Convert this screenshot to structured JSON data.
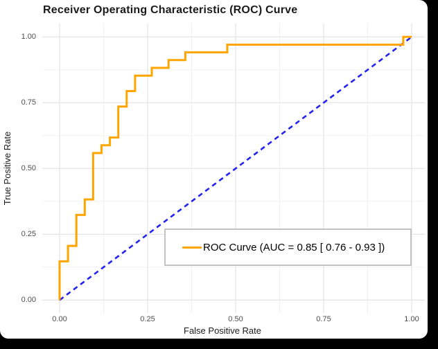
{
  "title": "Receiver Operating Characteristic (ROC) Curve",
  "colors": {
    "background_frame": "#000000",
    "sheet": "#ffffff",
    "roc_line": "#FFA500",
    "diagonal_line": "#2323EB",
    "grid_major": "#e6e6e6",
    "grid_minor": "#f1f1f1",
    "tick_text": "#4d4d4d",
    "axis_title_text": "#1a1a1a",
    "legend_border": "#c2c2c2"
  },
  "legend": {
    "label": "ROC Curve (AUC = 0.85 [ 0.76 - 0.93 ])"
  },
  "chart_data": {
    "type": "line",
    "subtype": "roc-step-curve",
    "title": "Receiver Operating Characteristic (ROC) Curve",
    "xlabel": "False Positive Rate",
    "ylabel": "True Positive Rate",
    "xlim": [
      0,
      1
    ],
    "ylim": [
      0,
      1
    ],
    "x_ticks": [
      0,
      0.25,
      0.5,
      0.75,
      1
    ],
    "y_ticks": [
      0,
      0.25,
      0.5,
      0.75,
      1
    ],
    "tick_format_labels": [
      "0.00",
      "0.25",
      "0.50",
      "0.75",
      "1.00"
    ],
    "minor_grid_values": [
      0.125,
      0.375,
      0.625,
      0.875
    ],
    "grid": "major and minor, light gray on white, no axis lines",
    "legend_position": "inside plot, lower right, boxed",
    "auc": 0.85,
    "auc_ci_low": 0.76,
    "auc_ci_high": 0.93,
    "series": [
      {
        "name": "ROC Curve (AUC = 0.85 [ 0.76 - 0.93 ])",
        "style": "solid step",
        "color": "#FFA500",
        "points": [
          [
            0,
            0
          ],
          [
            0,
            0.1471
          ],
          [
            0.0238,
            0.1471
          ],
          [
            0.0238,
            0.2059
          ],
          [
            0.0476,
            0.2059
          ],
          [
            0.0476,
            0.3235
          ],
          [
            0.0714,
            0.3235
          ],
          [
            0.0714,
            0.3824
          ],
          [
            0.0952,
            0.3824
          ],
          [
            0.0952,
            0.5588
          ],
          [
            0.119,
            0.5588
          ],
          [
            0.119,
            0.5882
          ],
          [
            0.1429,
            0.5882
          ],
          [
            0.1429,
            0.6176
          ],
          [
            0.1667,
            0.6176
          ],
          [
            0.1667,
            0.7353
          ],
          [
            0.1905,
            0.7353
          ],
          [
            0.1905,
            0.7941
          ],
          [
            0.2143,
            0.7941
          ],
          [
            0.2143,
            0.8529
          ],
          [
            0.2619,
            0.8529
          ],
          [
            0.2619,
            0.8824
          ],
          [
            0.3095,
            0.8824
          ],
          [
            0.3095,
            0.9118
          ],
          [
            0.3571,
            0.9118
          ],
          [
            0.3571,
            0.9412
          ],
          [
            0.4762,
            0.9412
          ],
          [
            0.4762,
            0.9706
          ],
          [
            0.9762,
            0.9706
          ],
          [
            0.9762,
            1
          ],
          [
            1,
            1
          ]
        ]
      },
      {
        "name": "chance-diagonal",
        "style": "dashed",
        "color": "#2323EB",
        "points": [
          [
            0,
            0
          ],
          [
            1,
            1
          ]
        ]
      }
    ]
  }
}
